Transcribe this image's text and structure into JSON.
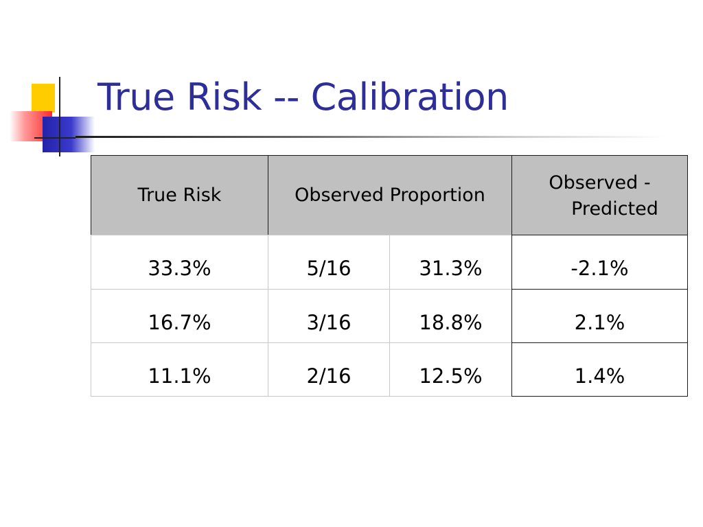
{
  "slide": {
    "title": "True Risk -- Calibration"
  },
  "table": {
    "headers": {
      "true_risk": "True Risk",
      "observed_proportion": "Observed Proportion",
      "observed_minus_predicted_line1": "Observed -",
      "observed_minus_predicted_line2": "Predicted"
    },
    "rows": [
      {
        "true_risk": "33.3%",
        "fraction": "5/16",
        "percent": "31.3%",
        "difference": "-2.1%"
      },
      {
        "true_risk": "16.7%",
        "fraction": "3/16",
        "percent": "18.8%",
        "difference": "2.1%"
      },
      {
        "true_risk": "11.1%",
        "fraction": "2/16",
        "percent": "12.5%",
        "difference": "1.4%"
      }
    ]
  },
  "colors": {
    "title": "#2e2e99",
    "header_fill": "#c0c0c0",
    "logo_yellow": "#ffcc00",
    "logo_red": "#ff2a2a",
    "logo_blue": "#2222aa"
  }
}
